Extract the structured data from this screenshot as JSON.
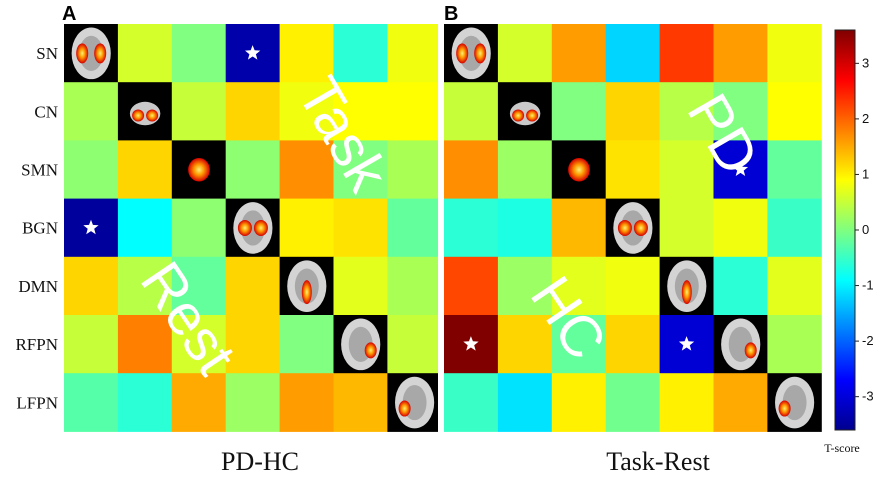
{
  "chart_data": [
    {
      "type": "heatmap",
      "panel": "A",
      "title": "PD-HC",
      "rows": [
        "SN",
        "CN",
        "SMN",
        "BGN",
        "DMN",
        "RFPN",
        "LFPN"
      ],
      "cols": [
        "SN",
        "CN",
        "SMN",
        "BGN",
        "DMN",
        "RFPN",
        "LFPN"
      ],
      "values": [
        [
          null,
          0.6,
          0.0,
          -3.3,
          1.0,
          -0.6,
          0.8
        ],
        [
          0.3,
          null,
          0.5,
          1.2,
          0.8,
          0.9,
          0.9
        ],
        [
          0.1,
          1.2,
          null,
          0.1,
          1.7,
          0.0,
          0.3
        ],
        [
          -3.4,
          -0.9,
          0.1,
          null,
          1.0,
          1.1,
          -0.2
        ],
        [
          1.2,
          0.4,
          -0.2,
          1.2,
          null,
          0.7,
          0.3
        ],
        [
          0.5,
          1.8,
          0.6,
          1.2,
          0.0,
          null,
          0.5
        ],
        [
          -0.3,
          -0.6,
          1.5,
          0.2,
          1.6,
          1.4,
          null
        ]
      ],
      "significant": [
        [
          0,
          3
        ],
        [
          3,
          0
        ]
      ],
      "overlay_labels": [
        "Task",
        "Rest"
      ]
    },
    {
      "type": "heatmap",
      "panel": "B",
      "title": "Task-Rest",
      "rows": [
        "SN",
        "CN",
        "SMN",
        "BGN",
        "DMN",
        "RFPN",
        "LFPN"
      ],
      "cols": [
        "SN",
        "CN",
        "SMN",
        "BGN",
        "DMN",
        "RFPN",
        "LFPN"
      ],
      "values": [
        [
          null,
          0.6,
          1.6,
          -1.2,
          2.3,
          1.6,
          0.8
        ],
        [
          0.5,
          null,
          0.0,
          1.2,
          0.4,
          0.0,
          0.9
        ],
        [
          1.7,
          0.2,
          null,
          1.1,
          0.6,
          -3.0,
          -0.2
        ],
        [
          -0.6,
          -0.7,
          1.4,
          null,
          0.6,
          0.8,
          -0.5
        ],
        [
          2.2,
          0.2,
          0.7,
          0.8,
          null,
          -0.6,
          0.7
        ],
        [
          3.6,
          1.2,
          -0.2,
          1.2,
          -3.0,
          null,
          0.3
        ],
        [
          -0.5,
          -1.1,
          1.0,
          -0.1,
          1.0,
          1.5,
          null
        ]
      ],
      "significant": [
        [
          2,
          5
        ],
        [
          5,
          0
        ],
        [
          5,
          4
        ]
      ],
      "overlay_labels": [
        "PD",
        "HC"
      ]
    }
  ],
  "colorbar": {
    "range": [
      -3.6,
      3.6
    ],
    "ticks": [
      "3",
      "2",
      "1",
      "0",
      "-1",
      "-2",
      "-3"
    ],
    "tick_values": [
      3,
      2,
      1,
      0,
      -1,
      -2,
      -3
    ],
    "label": "T-score",
    "colormap": "jet"
  }
}
